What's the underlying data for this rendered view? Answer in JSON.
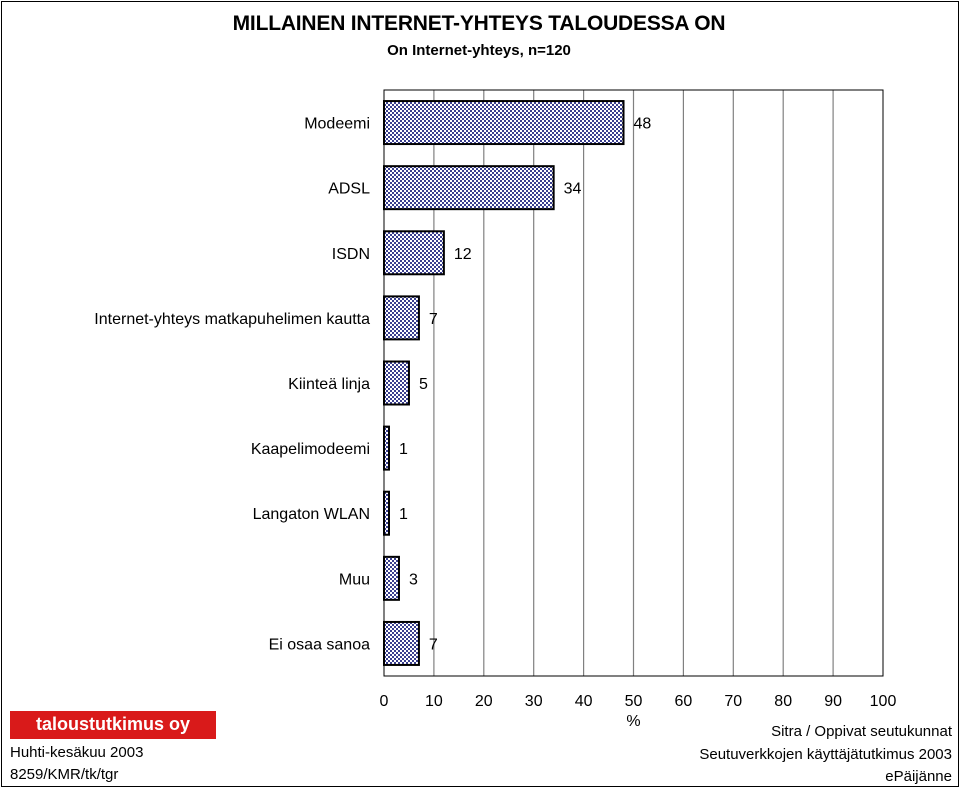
{
  "title": "MILLAINEN INTERNET-YHTEYS TALOUDESSA ON",
  "subtitle": "On Internet-yhteys, n=120",
  "chart_data": {
    "type": "bar",
    "orientation": "horizontal",
    "categories": [
      "Modeemi",
      "ADSL",
      "ISDN",
      "Internet-yhteys matkapuhelimen kautta",
      "Kiinteä linja",
      "Kaapelimodeemi",
      "Langaton WLAN",
      "Muu",
      "Ei osaa sanoa"
    ],
    "values": [
      48,
      34,
      12,
      7,
      5,
      1,
      1,
      3,
      7
    ],
    "xlabel": "%",
    "xlim": [
      0,
      100
    ],
    "xticks": [
      0,
      10,
      20,
      30,
      40,
      50,
      60,
      70,
      80,
      90,
      100
    ],
    "grid": true,
    "data_labels": true,
    "bar_color": "#3a3f8f"
  },
  "footer": {
    "logo_text": "taloustutkimus oy",
    "logo_color": "#d91a1a",
    "date": "Huhti-kesäkuu 2003",
    "code": "8259/KMR/tk/tgr",
    "source_line1": "Sitra / Oppivat seutukunnat",
    "source_line2": "Seutuverkkojen käyttäjätutkimus 2003",
    "source_line3": "ePäijänne"
  }
}
